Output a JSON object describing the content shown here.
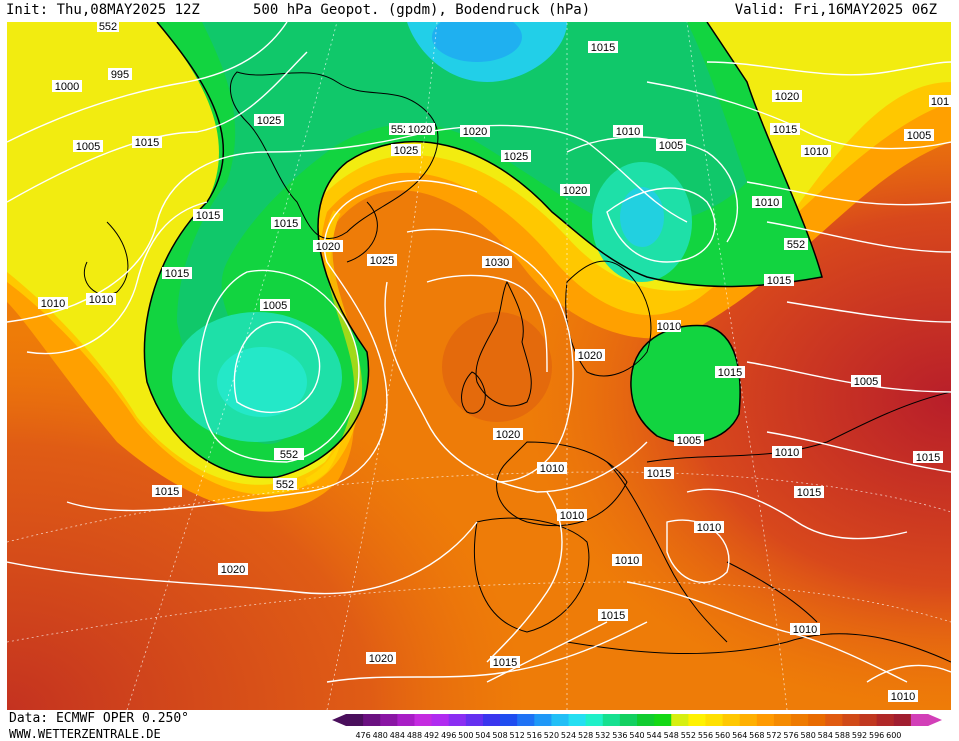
{
  "header": {
    "init": "Init: Thu,08MAY2025 12Z",
    "title": "500 hPa Geopot. (gpdm), Bodendruck (hPa)",
    "valid": "Valid: Fri,16MAY2025 06Z"
  },
  "footer": {
    "credit": "Data: ECMWF OPER 0.250°",
    "site": "WWW.WETTERZENTRALE.DE"
  },
  "legend": {
    "ticks": [
      "476",
      "480",
      "484",
      "488",
      "492",
      "496",
      "500",
      "504",
      "508",
      "512",
      "516",
      "520",
      "524",
      "528",
      "532",
      "536",
      "540",
      "544",
      "548",
      "552",
      "556",
      "560",
      "564",
      "568",
      "572",
      "576",
      "580",
      "584",
      "588",
      "592",
      "596",
      "600"
    ],
    "colors": [
      "#4a0f5c",
      "#6a1180",
      "#8a16a4",
      "#a81ec6",
      "#c42be0",
      "#b02bf0",
      "#8a2ef2",
      "#6430f0",
      "#3a35ee",
      "#1f4df0",
      "#1f72f5",
      "#1f98f7",
      "#22bff6",
      "#24dff2",
      "#1ff0c8",
      "#16e090",
      "#12d060",
      "#10cc30",
      "#14d815",
      "#d6ef10",
      "#fff200",
      "#ffe000",
      "#ffc800",
      "#ffb000",
      "#ff9a00",
      "#f58a00",
      "#ee7a00",
      "#e86a00",
      "#e05a10",
      "#d04a18",
      "#c03820",
      "#b02828",
      "#a01e30",
      "#d23fb8"
    ]
  },
  "map": {
    "contour_color": "#ffffff",
    "isobar_labels": [
      "552",
      "995",
      "1000",
      "1005",
      "1015",
      "1025",
      "552",
      "1020",
      "1020",
      "1015",
      "1010",
      "1005",
      "1025",
      "1020",
      "1020",
      "1015",
      "1010",
      "1015",
      "1020",
      "1010",
      "1010",
      "1015",
      "1005",
      "1025",
      "1030",
      "552",
      "1010",
      "1015",
      "1020",
      "1015",
      "1005",
      "1010",
      "552",
      "1015",
      "1010",
      "1015",
      "1010",
      "1025",
      "1020",
      "1010",
      "1015",
      "1005",
      "1005",
      "1015",
      "1015",
      "1010",
      "1010",
      "1020",
      "1015",
      "1020",
      "1015",
      "1010",
      "1010",
      "1010",
      "101"
    ]
  }
}
